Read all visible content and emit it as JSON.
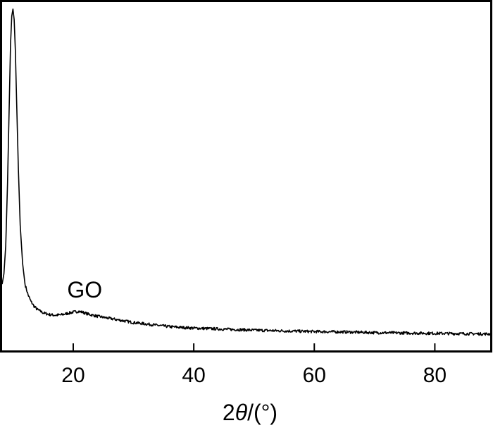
{
  "chart_data": {
    "type": "line",
    "title": "",
    "xlabel": {
      "prefix": "2",
      "symbol": "θ",
      "suffix": "/(°)"
    },
    "ylabel": "",
    "xlim": [
      8.2,
      89.3
    ],
    "ylim": [
      0,
      1
    ],
    "x_ticks": [
      20,
      40,
      60,
      80
    ],
    "y_ticks": [],
    "grid": false,
    "annotations": [
      {
        "text": "GO",
        "x": 20.5,
        "y": 0.16
      }
    ],
    "series": [
      {
        "color": "#000000",
        "points": [
          [
            8.2,
            0.19
          ],
          [
            8.5,
            0.22
          ],
          [
            8.8,
            0.3
          ],
          [
            9.1,
            0.48
          ],
          [
            9.4,
            0.72
          ],
          [
            9.6,
            0.88
          ],
          [
            9.8,
            0.96
          ],
          [
            10.0,
            0.98
          ],
          [
            10.2,
            0.95
          ],
          [
            10.4,
            0.86
          ],
          [
            10.6,
            0.72
          ],
          [
            10.9,
            0.52
          ],
          [
            11.2,
            0.36
          ],
          [
            11.6,
            0.25
          ],
          [
            12.0,
            0.19
          ],
          [
            12.5,
            0.16
          ],
          [
            13.0,
            0.14
          ],
          [
            13.5,
            0.127
          ],
          [
            14.0,
            0.118
          ],
          [
            15.0,
            0.108
          ],
          [
            16.0,
            0.103
          ],
          [
            17.0,
            0.101
          ],
          [
            18.0,
            0.102
          ],
          [
            19.0,
            0.106
          ],
          [
            20.0,
            0.11
          ],
          [
            20.8,
            0.112
          ],
          [
            21.5,
            0.11
          ],
          [
            22.5,
            0.104
          ],
          [
            24.0,
            0.098
          ],
          [
            26.0,
            0.092
          ],
          [
            28.0,
            0.086
          ],
          [
            30.0,
            0.08
          ],
          [
            33.0,
            0.074
          ],
          [
            36.0,
            0.068
          ],
          [
            40.0,
            0.064
          ],
          [
            45.0,
            0.061
          ],
          [
            50.0,
            0.058
          ],
          [
            55.0,
            0.056
          ],
          [
            60.0,
            0.054
          ],
          [
            65.0,
            0.053
          ],
          [
            70.0,
            0.051
          ],
          [
            75.0,
            0.05
          ],
          [
            80.0,
            0.049
          ],
          [
            85.0,
            0.048
          ],
          [
            89.3,
            0.047
          ]
        ]
      }
    ]
  }
}
